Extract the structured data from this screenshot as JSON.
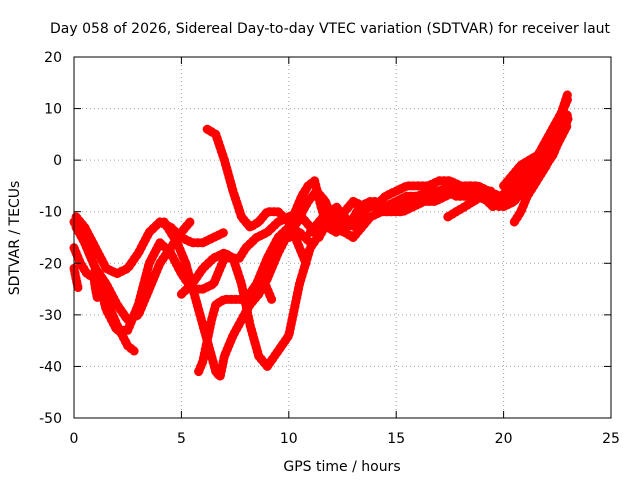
{
  "chart_data": {
    "type": "line",
    "title": "Day 058 of 2026, Sidereal Day-to-day VTEC variation (SDTVAR) for receiver laut",
    "xlabel": "GPS time / hours",
    "ylabel": "SDTVAR / TECUs",
    "xlim": [
      0,
      25
    ],
    "ylim": [
      -50,
      20
    ],
    "xticks": [
      0,
      5,
      10,
      15,
      20,
      25
    ],
    "yticks": [
      -50,
      -40,
      -30,
      -20,
      -10,
      0,
      10,
      20
    ],
    "grid": true,
    "color": "#ff0000",
    "series": [
      {
        "points": [
          [
            0.0,
            -12
          ],
          [
            0.3,
            -14
          ],
          [
            0.7,
            -18
          ],
          [
            1.0,
            -21
          ],
          [
            1.5,
            -24
          ],
          [
            2.0,
            -28
          ],
          [
            2.5,
            -31
          ],
          [
            3.0,
            -30
          ],
          [
            3.5,
            -25
          ],
          [
            4.0,
            -20
          ],
          [
            4.5,
            -17
          ],
          [
            5.0,
            -14
          ],
          [
            5.4,
            -12
          ]
        ]
      },
      {
        "points": [
          [
            0.1,
            -11
          ],
          [
            0.5,
            -13
          ],
          [
            1.0,
            -17
          ],
          [
            1.5,
            -21
          ],
          [
            2.0,
            -22
          ],
          [
            2.5,
            -21
          ],
          [
            3.0,
            -18
          ],
          [
            3.5,
            -14
          ],
          [
            4.0,
            -12
          ],
          [
            4.5,
            -13
          ],
          [
            5.0,
            -15
          ],
          [
            5.5,
            -16
          ],
          [
            6.0,
            -16
          ],
          [
            6.5,
            -15
          ],
          [
            7.0,
            -14
          ]
        ]
      },
      {
        "points": [
          [
            0.0,
            -17
          ],
          [
            0.3,
            -20
          ],
          [
            0.6,
            -22
          ],
          [
            1.0,
            -23
          ],
          [
            1.5,
            -27
          ],
          [
            2.0,
            -32
          ],
          [
            2.5,
            -36
          ],
          [
            2.8,
            -37
          ]
        ]
      },
      {
        "points": [
          [
            0.1,
            -13
          ],
          [
            0.5,
            -16
          ],
          [
            1.0,
            -21
          ],
          [
            1.5,
            -29
          ],
          [
            2.0,
            -33
          ],
          [
            2.5,
            -33
          ],
          [
            3.0,
            -28
          ],
          [
            3.5,
            -20
          ],
          [
            4.0,
            -16
          ],
          [
            4.5,
            -18
          ],
          [
            5.0,
            -22
          ],
          [
            5.5,
            -25
          ],
          [
            6.0,
            -25
          ],
          [
            6.5,
            -24
          ],
          [
            7.0,
            -19
          ],
          [
            7.7,
            -19
          ],
          [
            8.0,
            -17
          ],
          [
            8.5,
            -15
          ],
          [
            9.0,
            -14
          ],
          [
            9.5,
            -12
          ],
          [
            10.0,
            -11
          ],
          [
            10.5,
            -10
          ]
        ]
      },
      {
        "points": [
          [
            0.0,
            -21
          ],
          [
            0.1,
            -23
          ],
          [
            0.2,
            -25
          ]
        ]
      },
      {
        "points": [
          [
            0.9,
            -22
          ],
          [
            1.0,
            -25
          ],
          [
            1.1,
            -27
          ]
        ]
      },
      {
        "points": [
          [
            4.2,
            -12
          ],
          [
            4.8,
            -16
          ],
          [
            5.2,
            -20
          ],
          [
            5.6,
            -26
          ],
          [
            6.0,
            -32
          ],
          [
            6.4,
            -38
          ],
          [
            6.6,
            -41
          ],
          [
            6.8,
            -42
          ],
          [
            7.0,
            -38
          ],
          [
            7.4,
            -34
          ],
          [
            7.8,
            -31
          ],
          [
            8.2,
            -28
          ],
          [
            8.6,
            -26
          ],
          [
            9.0,
            -23
          ],
          [
            9.5,
            -18
          ],
          [
            10.0,
            -14
          ],
          [
            10.5,
            -11
          ]
        ]
      },
      {
        "points": [
          [
            5.0,
            -26
          ],
          [
            5.5,
            -24
          ],
          [
            6.0,
            -21
          ],
          [
            6.5,
            -19
          ],
          [
            7.0,
            -18
          ],
          [
            7.4,
            -19
          ],
          [
            7.8,
            -24
          ],
          [
            8.2,
            -32
          ],
          [
            8.6,
            -38
          ],
          [
            9.0,
            -40
          ],
          [
            9.5,
            -37
          ],
          [
            10.0,
            -34
          ],
          [
            10.5,
            -24
          ],
          [
            11.0,
            -17
          ],
          [
            11.5,
            -14
          ]
        ]
      },
      {
        "points": [
          [
            5.8,
            -41
          ],
          [
            6.0,
            -39
          ],
          [
            6.2,
            -35
          ],
          [
            6.4,
            -31
          ],
          [
            6.6,
            -28
          ],
          [
            7.0,
            -27
          ],
          [
            7.5,
            -27
          ],
          [
            8.0,
            -27
          ],
          [
            8.5,
            -24
          ],
          [
            9.0,
            -19
          ],
          [
            9.5,
            -15
          ],
          [
            10.0,
            -13
          ],
          [
            10.5,
            -14
          ],
          [
            11.0,
            -16
          ]
        ]
      },
      {
        "points": [
          [
            6.2,
            6
          ],
          [
            6.6,
            5
          ],
          [
            7.0,
            0
          ],
          [
            7.4,
            -6
          ],
          [
            7.8,
            -11
          ],
          [
            8.2,
            -13
          ],
          [
            8.6,
            -12
          ],
          [
            9.0,
            -10
          ],
          [
            9.5,
            -10
          ],
          [
            10.0,
            -12
          ],
          [
            10.4,
            -16
          ],
          [
            10.8,
            -20
          ]
        ]
      },
      {
        "points": [
          [
            8.7,
            -22
          ],
          [
            9.0,
            -25
          ],
          [
            9.2,
            -27
          ]
        ]
      },
      {
        "points": [
          [
            10.0,
            -15
          ],
          [
            10.3,
            -10
          ],
          [
            10.6,
            -7
          ],
          [
            10.9,
            -5
          ],
          [
            11.2,
            -4
          ],
          [
            11.5,
            -9
          ],
          [
            11.8,
            -13
          ],
          [
            12.2,
            -14
          ],
          [
            12.6,
            -10
          ],
          [
            13.0,
            -8
          ],
          [
            13.5,
            -9
          ],
          [
            14.0,
            -9
          ],
          [
            14.5,
            -7
          ],
          [
            15.0,
            -6
          ],
          [
            15.5,
            -5
          ],
          [
            16.0,
            -5
          ],
          [
            16.5,
            -5
          ],
          [
            17.0,
            -4
          ],
          [
            17.5,
            -4
          ],
          [
            18.0,
            -5
          ],
          [
            18.5,
            -5
          ],
          [
            19.0,
            -6
          ],
          [
            19.5,
            -8
          ],
          [
            20.0,
            -9
          ],
          [
            20.5,
            -8
          ],
          [
            21.0,
            -5
          ],
          [
            21.5,
            -2
          ],
          [
            22.0,
            1
          ],
          [
            22.5,
            5
          ],
          [
            23.0,
            9
          ]
        ]
      },
      {
        "points": [
          [
            10.2,
            -13
          ],
          [
            10.6,
            -11
          ],
          [
            11.0,
            -13
          ],
          [
            11.4,
            -15
          ],
          [
            11.8,
            -12
          ],
          [
            12.2,
            -9
          ],
          [
            12.6,
            -11
          ],
          [
            13.0,
            -13
          ],
          [
            13.5,
            -10
          ],
          [
            14.0,
            -8
          ],
          [
            14.5,
            -9
          ],
          [
            15.0,
            -8
          ],
          [
            15.5,
            -7
          ],
          [
            16.0,
            -7
          ],
          [
            16.5,
            -6
          ],
          [
            17.0,
            -6
          ],
          [
            17.5,
            -5
          ],
          [
            18.0,
            -5
          ],
          [
            18.5,
            -6
          ],
          [
            19.0,
            -7
          ],
          [
            19.5,
            -9
          ],
          [
            20.0,
            -8
          ],
          [
            20.5,
            -5
          ],
          [
            21.0,
            -2
          ],
          [
            21.5,
            -1
          ],
          [
            22.0,
            0
          ],
          [
            22.5,
            3
          ],
          [
            23.0,
            7
          ]
        ]
      },
      {
        "points": [
          [
            10.5,
            -11
          ],
          [
            10.9,
            -8
          ],
          [
            11.3,
            -6
          ],
          [
            11.7,
            -8
          ],
          [
            12.1,
            -12
          ],
          [
            12.5,
            -14
          ],
          [
            12.9,
            -12
          ],
          [
            13.3,
            -9
          ],
          [
            13.8,
            -8
          ],
          [
            14.3,
            -9
          ],
          [
            14.8,
            -10
          ],
          [
            15.3,
            -9
          ],
          [
            15.8,
            -8
          ],
          [
            16.3,
            -7
          ],
          [
            16.8,
            -7
          ],
          [
            17.3,
            -6
          ],
          [
            17.8,
            -7
          ],
          [
            18.3,
            -7
          ],
          [
            18.8,
            -7
          ],
          [
            19.3,
            -8
          ],
          [
            19.8,
            -9
          ],
          [
            20.3,
            -7
          ],
          [
            20.8,
            -4
          ],
          [
            21.3,
            -3
          ],
          [
            21.8,
            -2
          ],
          [
            22.3,
            1
          ],
          [
            22.8,
            6
          ],
          [
            23.0,
            8
          ]
        ]
      },
      {
        "points": [
          [
            11.0,
            -14
          ],
          [
            11.4,
            -12
          ],
          [
            11.8,
            -10
          ],
          [
            12.2,
            -11
          ],
          [
            12.6,
            -14
          ],
          [
            13.0,
            -15
          ],
          [
            13.4,
            -13
          ],
          [
            13.8,
            -11
          ],
          [
            14.3,
            -10
          ],
          [
            14.8,
            -10
          ],
          [
            15.3,
            -10
          ],
          [
            15.8,
            -9
          ],
          [
            16.3,
            -8
          ],
          [
            16.8,
            -8
          ],
          [
            17.3,
            -7
          ],
          [
            17.8,
            -6
          ],
          [
            18.3,
            -5
          ],
          [
            18.8,
            -5
          ],
          [
            19.3,
            -6
          ],
          [
            19.8,
            -7
          ],
          [
            20.3,
            -6
          ],
          [
            20.8,
            -5
          ],
          [
            21.3,
            -3
          ],
          [
            21.8,
            0
          ],
          [
            22.2,
            4
          ],
          [
            22.6,
            8
          ],
          [
            23.0,
            13
          ]
        ]
      },
      {
        "points": [
          [
            17.4,
            -11
          ],
          [
            17.8,
            -10
          ],
          [
            18.2,
            -9
          ],
          [
            18.6,
            -8
          ],
          [
            19.0,
            -7
          ],
          [
            19.4,
            -6
          ]
        ]
      },
      {
        "points": [
          [
            20.5,
            -12
          ],
          [
            20.8,
            -10
          ],
          [
            21.1,
            -7
          ],
          [
            21.4,
            -5
          ],
          [
            21.7,
            -3
          ],
          [
            22.0,
            -1
          ],
          [
            22.3,
            2
          ],
          [
            22.6,
            5
          ],
          [
            22.9,
            8
          ]
        ]
      },
      {
        "points": [
          [
            20.0,
            -5
          ],
          [
            20.4,
            -3
          ],
          [
            20.8,
            -1
          ],
          [
            21.2,
            0
          ],
          [
            21.6,
            1
          ],
          [
            22.0,
            4
          ],
          [
            22.4,
            7
          ],
          [
            22.8,
            10
          ],
          [
            23.0,
            12
          ]
        ]
      }
    ]
  }
}
